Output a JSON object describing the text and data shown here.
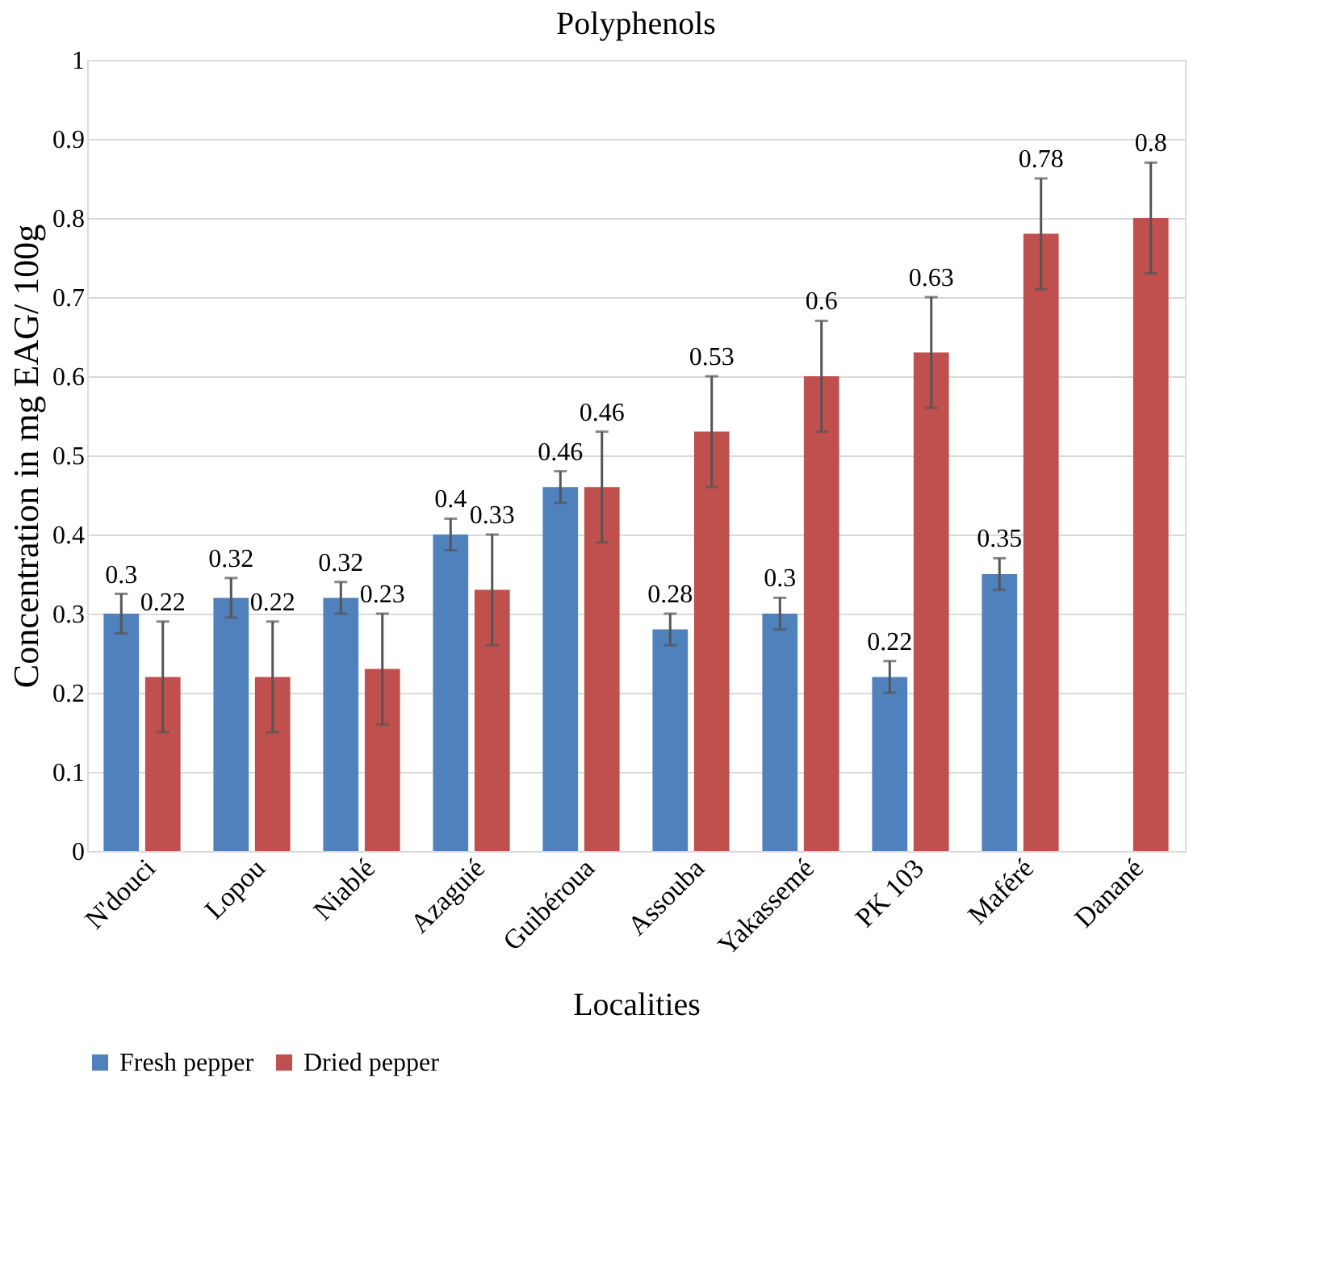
{
  "chart_data": {
    "type": "bar",
    "title": "Polyphenols",
    "xlabel": "Localities",
    "ylabel": "Concentration in mg EAG/ 100g",
    "categories": [
      "N'douci",
      "Lopou",
      "Niablé",
      "Azaguié",
      "Guibéroua",
      "Assouba",
      "Yakassemé",
      "PK 103",
      "Maféré",
      "Danané"
    ],
    "series": [
      {
        "name": "Fresh pepper",
        "color": "#4f81bd",
        "values": [
          0.3,
          0.32,
          0.32,
          0.4,
          0.46,
          0.28,
          0.3,
          0.22,
          0.35,
          null
        ],
        "errors": [
          0.025,
          0.025,
          0.02,
          0.02,
          0.02,
          0.02,
          0.02,
          0.02,
          0.02,
          null
        ]
      },
      {
        "name": "Dried pepper",
        "color": "#c0504d",
        "values": [
          0.22,
          0.22,
          0.23,
          0.33,
          0.46,
          0.53,
          0.6,
          0.63,
          0.78,
          0.8
        ],
        "errors": [
          0.07,
          0.07,
          0.07,
          0.07,
          0.07,
          0.07,
          0.07,
          0.07,
          0.07,
          0.07
        ]
      }
    ],
    "ylim": [
      0,
      1
    ],
    "yticks": [
      0,
      0.1,
      0.2,
      0.3,
      0.4,
      0.5,
      0.6,
      0.7,
      0.8,
      0.9,
      1
    ],
    "grid": "y",
    "legend": "bottom",
    "data_labels": true
  }
}
